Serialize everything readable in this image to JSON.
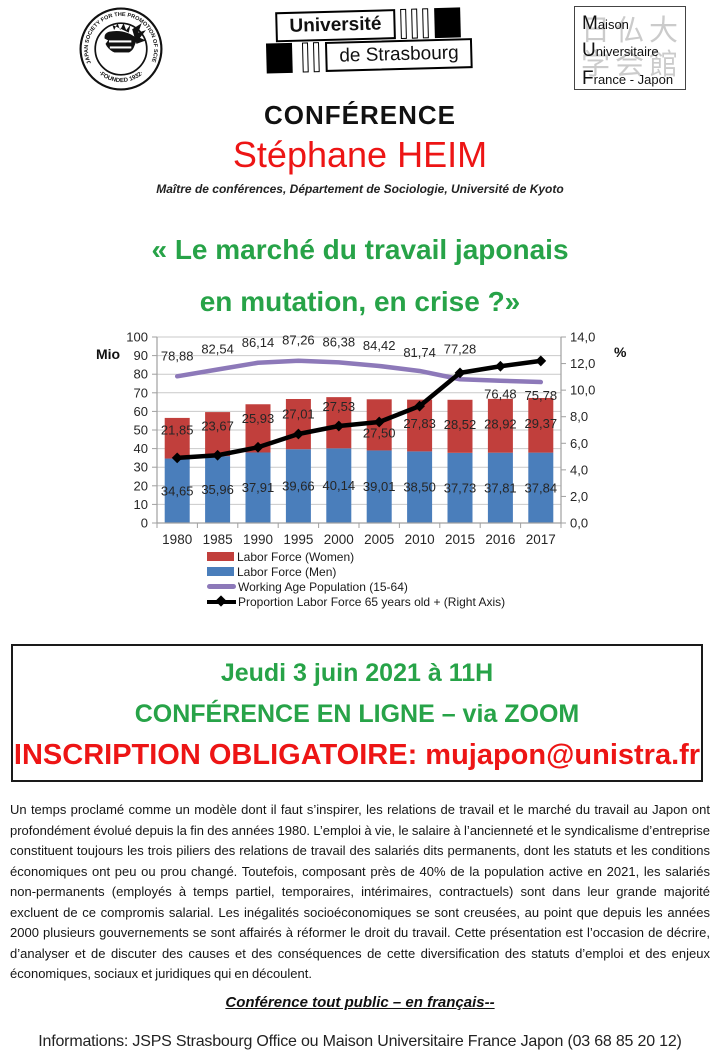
{
  "poster": {
    "kicker": "CONFÉRENCE",
    "speaker": "Stéphane HEIM",
    "affiliation": "Maître de conférences, Département de Sociologie,  Université  de Kyoto",
    "title_line1": "« Le marché du travail japonais",
    "title_line2": "en mutation, en crise ?»"
  },
  "logos": {
    "jsps": {
      "ring_text": "JAPAN SOCIETY FOR THE PROMOTION OF SCIENCE",
      "ring_bottom_text": "·FOUNDED 1932·"
    },
    "unistra": {
      "line1": "Université",
      "line2": "de Strasbourg"
    },
    "mufj": {
      "latin_line1": "Maison",
      "latin_line2": "Universitaire",
      "latin_line3": "France - Japon",
      "kanji_line1": "日仏大",
      "kanji_line2": "学会館"
    }
  },
  "chart_data": {
    "type": "bar",
    "subtype": "stacked-bars-with-lines",
    "categories": [
      "1980",
      "1985",
      "1990",
      "1995",
      "2000",
      "2005",
      "2010",
      "2015",
      "2016",
      "2017"
    ],
    "series": [
      {
        "name": "Labor Force (Women)",
        "kind": "bar-stacked",
        "axis": "left",
        "color": "#c13f3c",
        "values": [
          21.85,
          23.67,
          25.93,
          27.01,
          27.53,
          27.5,
          27.83,
          28.52,
          28.92,
          29.37
        ]
      },
      {
        "name": "Labor Force (Men)",
        "kind": "bar-stacked",
        "axis": "left",
        "color": "#4a7ebb",
        "values": [
          34.65,
          35.96,
          37.91,
          39.66,
          40.14,
          39.01,
          38.5,
          37.73,
          37.81,
          37.84
        ]
      },
      {
        "name": "Working Age Population (15-64)",
        "kind": "line",
        "axis": "left",
        "color": "#8d79b9",
        "values": [
          78.88,
          82.54,
          86.14,
          87.26,
          86.38,
          84.42,
          81.74,
          77.28,
          76.48,
          75.78
        ]
      },
      {
        "name": "Proportion Labor Force 65 years old + (Right Axis)",
        "kind": "line-diamond",
        "axis": "right",
        "color": "#000000",
        "values": [
          4.9,
          5.1,
          5.7,
          6.7,
          7.3,
          7.6,
          8.8,
          11.3,
          11.8,
          12.2
        ]
      }
    ],
    "left_axis": {
      "label": "Mio",
      "min": 0,
      "max": 100,
      "step": 10
    },
    "right_axis": {
      "label": "%",
      "min": 0,
      "max": 14,
      "step": 2
    },
    "grid": true,
    "legend_position": "bottom-left",
    "data_labels_series": [
      "Labor Force (Women)",
      "Labor Force (Men)",
      "Working Age Population (15-64)"
    ]
  },
  "event_box": {
    "line1": "Jeudi 3 juin 2021 à 11H",
    "line2": "CONFÉRENCE EN LIGNE – via ZOOM",
    "line3": "INSCRIPTION OBLIGATOIRE: mujapon@unistra.fr"
  },
  "abstract": "Un temps proclamé comme un modèle dont il faut s’inspirer, les relations de travail et le marché du travail au Japon ont profondément évolué depuis la fin des années 1980. L’emploi à vie, le salaire à l’ancienneté et le syndicalisme d’entreprise constituent toujours les trois piliers des relations de travail des salariés dits permanents, dont les statuts et les conditions économiques ont peu ou prou changé. Toutefois, composant près de 40% de la population active en 2021, les salariés non-permanents (employés à temps partiel, temporaires, intérimaires, contractuels) sont dans leur grande majorité excluent de ce compromis salarial. Les inégalités socioéconomiques se sont creusées, au point que depuis les années 2000 plusieurs gouvernements se sont affairés à réformer le droit du travail. Cette présentation est l’occasion de décrire, d’analyser et de discuter des causes et des conséquences de cette diversification des statuts d’emploi et des enjeux économiques, sociaux et juridiques qui en découlent.",
  "audience_note": "Conférence tout public – en français--",
  "footer_info": "Informations: JSPS Strasbourg Office  ou Maison Universitaire France Japon (03 68 85 20 12)",
  "colors": {
    "title_green": "#27a348",
    "accent_red": "#ed1515",
    "grid_gray": "#c9c9c9",
    "axis_gray": "#a0a0a0",
    "label_dark": "#262626"
  }
}
